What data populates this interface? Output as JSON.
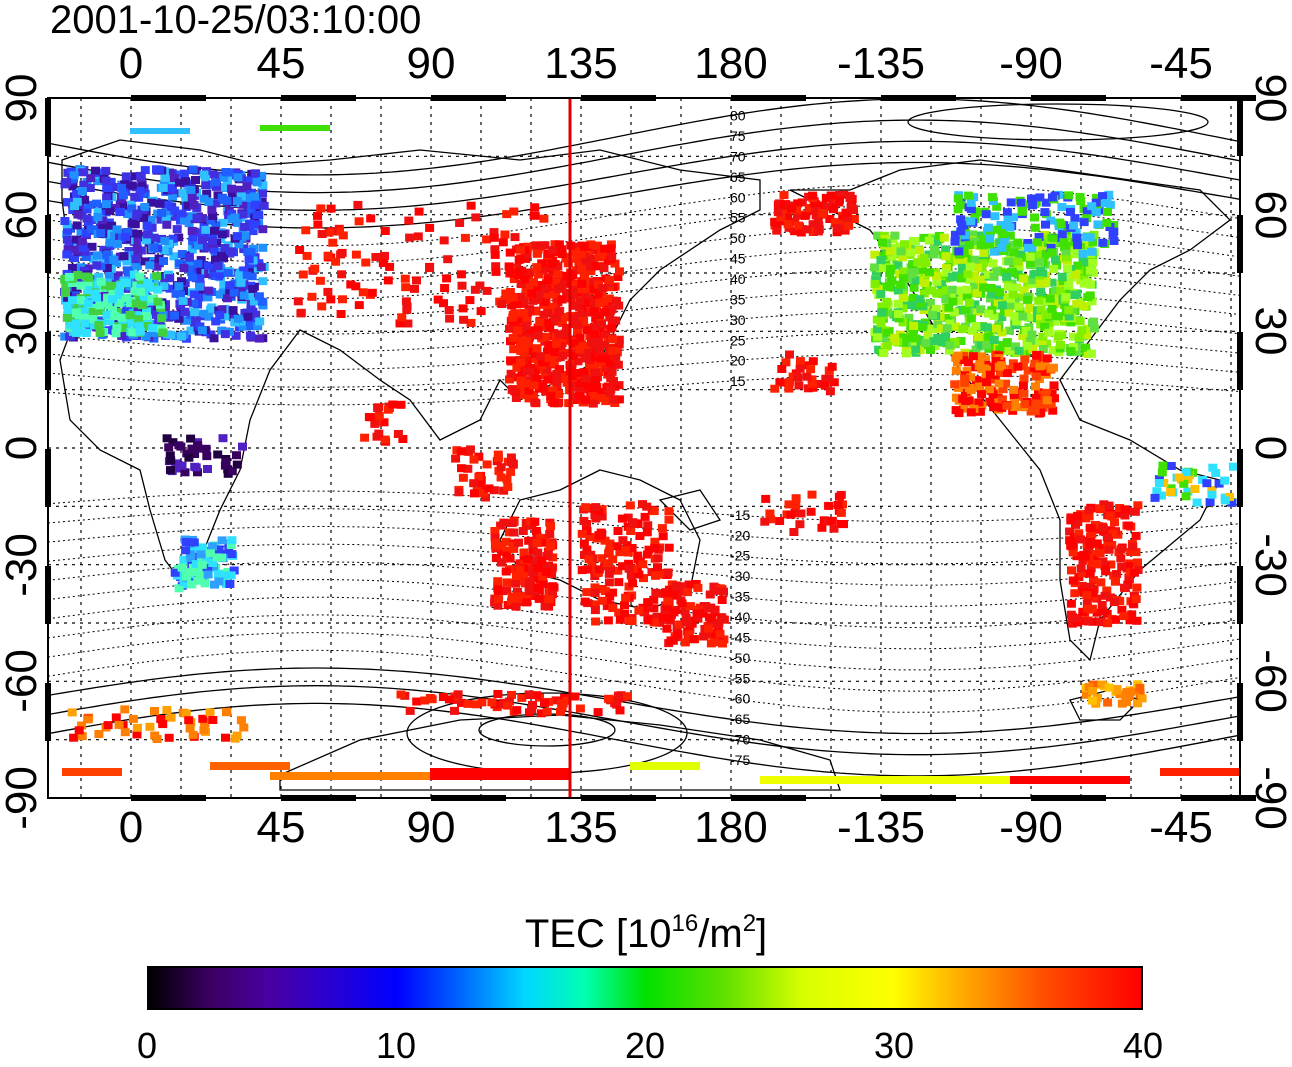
{
  "title": "2001-10-25/03:10:00",
  "top_ticks": [
    "0",
    "45",
    "90",
    "135",
    "180",
    "-135",
    "-90",
    "-45"
  ],
  "bottom_ticks": [
    "0",
    "45",
    "90",
    "135",
    "180",
    "-135",
    "-90",
    "-45"
  ],
  "left_ticks": [
    "90",
    "60",
    "30",
    "0",
    "-30",
    "-60",
    "-90"
  ],
  "right_ticks": [
    "90",
    "60",
    "30",
    "0",
    "-30",
    "-60",
    "-90"
  ],
  "contour_labels": [
    "80",
    "75",
    "70",
    "65",
    "60",
    "55",
    "50",
    "45",
    "40",
    "35",
    "30",
    "25",
    "20",
    "15",
    "-15",
    "-20",
    "-25",
    "-30",
    "-35",
    "-40",
    "-45",
    "-50",
    "-55",
    "-60",
    "-65",
    "-70",
    "-75"
  ],
  "colorbar": {
    "title": "TEC  [10",
    "title_exp": "16",
    "title_mid": "/m",
    "title_exp2": "2",
    "title_end": "]",
    "ticks": [
      "0",
      "10",
      "20",
      "30",
      "40"
    ]
  },
  "colors": {
    "terminator": "#e00000",
    "high_tec": "#ff0000",
    "low_tec": "#2040ff"
  }
}
